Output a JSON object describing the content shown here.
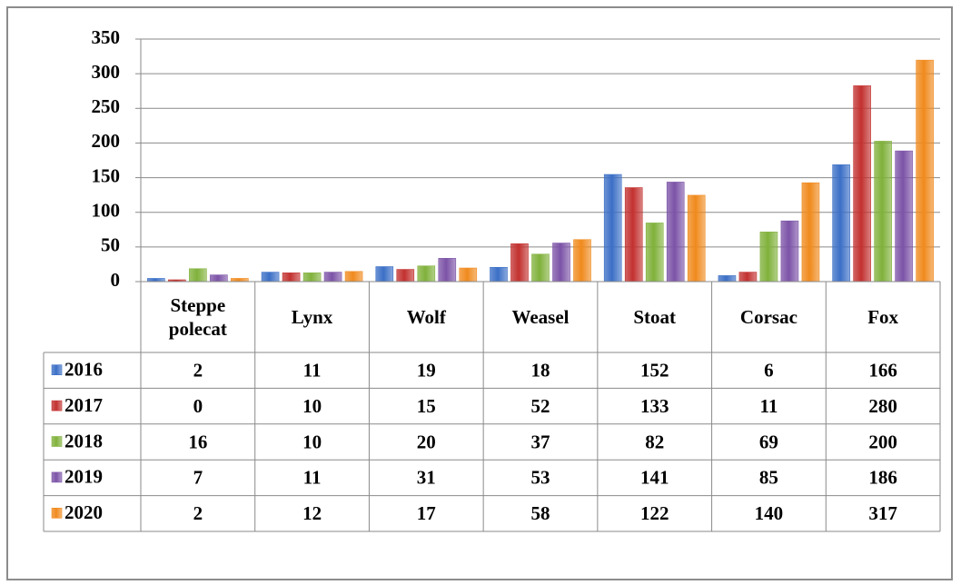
{
  "chart_data": {
    "type": "bar",
    "categories": [
      "Steppe polecat",
      "Lynx",
      "Wolf",
      "Weasel",
      "Stoat",
      "Corsac",
      "Fox"
    ],
    "series": [
      {
        "name": "2016",
        "color": "#3b6fc6",
        "values": [
          2,
          11,
          19,
          18,
          152,
          6,
          166
        ]
      },
      {
        "name": "2017",
        "color": "#c2312f",
        "values": [
          0,
          10,
          15,
          52,
          133,
          11,
          280
        ]
      },
      {
        "name": "2018",
        "color": "#80b13b",
        "values": [
          16,
          10,
          20,
          37,
          82,
          69,
          200
        ]
      },
      {
        "name": "2019",
        "color": "#7c53a7",
        "values": [
          7,
          11,
          31,
          53,
          141,
          85,
          186
        ]
      },
      {
        "name": "2020",
        "color": "#f08a1d",
        "values": [
          2,
          12,
          17,
          58,
          122,
          140,
          317
        ]
      }
    ],
    "ylim": [
      0,
      350
    ],
    "yticks": [
      0,
      50,
      100,
      150,
      200,
      250,
      300,
      350
    ],
    "grid": true,
    "data_table": true
  }
}
